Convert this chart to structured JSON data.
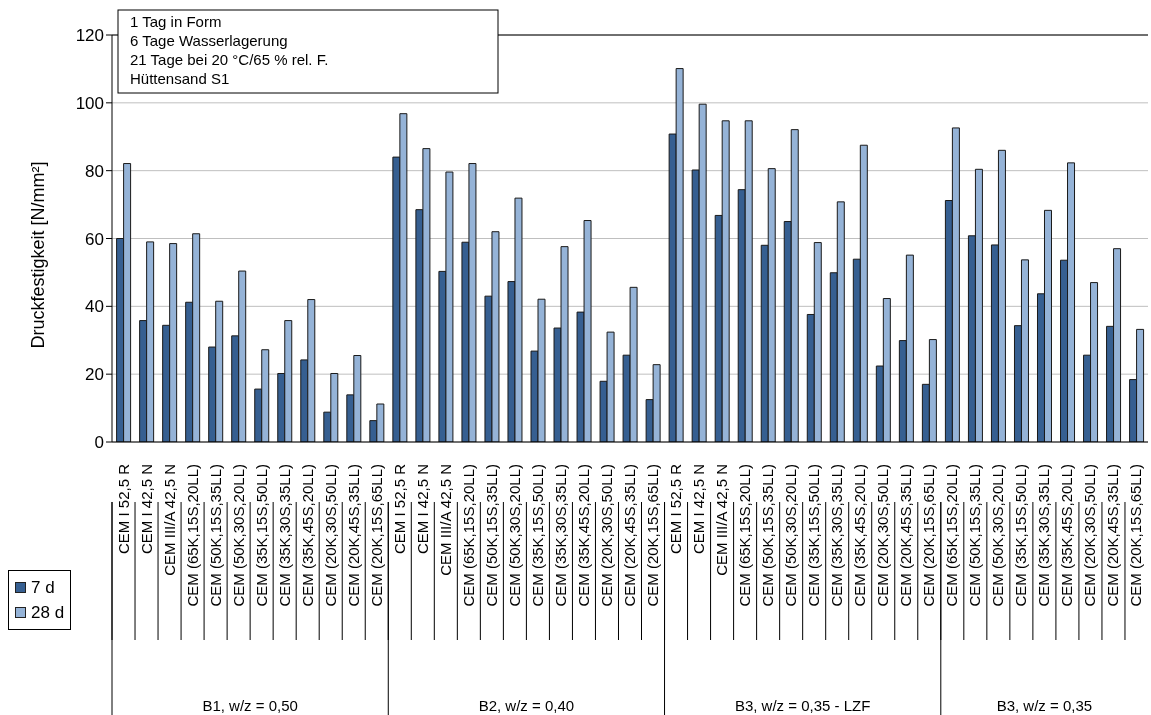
{
  "chart_data": {
    "type": "bar",
    "ylabel": "Druckfestigkeit [N/mm²]",
    "categories": [
      "CEM I 52,5 R",
      "CEM I 42,5 N",
      "CEM III/A 42,5 N",
      "CEM (65K,15S,20LL)",
      "CEM (50K,15S,35LL)",
      "CEM (50K,30S,20LL)",
      "CEM (35K,15S,50LL)",
      "CEM (35K,30S,35LL)",
      "CEM (35K,45S,20LL)",
      "CEM (20K,30S,50LL)",
      "CEM (20K,45S,35LL)",
      "CEM (20K,15S,65LL)",
      "CEM I 52,5 R",
      "CEM I 42,5 N",
      "CEM III/A 42,5 N",
      "CEM (65K,15S,20LL)",
      "CEM (50K,15S,35LL)",
      "CEM (50K,30S,20LL)",
      "CEM (35K,15S,50LL)",
      "CEM (35K,30S,35LL)",
      "CEM (35K,45S,20LL)",
      "CEM (20K,30S,50LL)",
      "CEM (20K,45S,35LL)",
      "CEM (20K,15S,65LL)",
      "CEM I 52,5 R",
      "CEM I 42,5 N",
      "CEM III/A 42,5 N",
      "CEM (65K,15S,20LL)",
      "CEM (50K,15S,35LL)",
      "CEM (50K,30S,20LL)",
      "CEM (35K,15S,50LL)",
      "CEM (35K,30S,35LL)",
      "CEM (35K,45S,20LL)",
      "CEM (20K,30S,50LL)",
      "CEM (20K,45S,35LL)",
      "CEM (20K,15S,65LL)",
      "CEM (65K,15S,20LL)",
      "CEM (50K,15S,35LL)",
      "CEM (50K,30S,20LL)",
      "CEM (35K,15S,50LL)",
      "CEM (35K,30S,35LL)",
      "CEM (35K,45S,20LL)",
      "CEM (20K,30S,50LL)",
      "CEM (20K,45S,35LL)",
      "CEM (20K,15S,65LL)"
    ],
    "series": [
      {
        "name": "7 d",
        "color": "#365f91",
        "values": [
          60,
          35.8,
          34.4,
          41.2,
          28,
          31.3,
          15.6,
          20.2,
          24.2,
          8.8,
          13.9,
          6.3,
          84,
          68.5,
          50.3,
          58.9,
          43,
          47.3,
          26.8,
          33.6,
          38.3,
          17.9,
          25.6,
          12.5,
          90.8,
          80.2,
          66.8,
          74.4,
          58,
          65,
          37.6,
          49.9,
          53.9,
          22.4,
          29.9,
          17,
          71.2,
          60.8,
          58.1,
          34.3,
          43.7,
          53.6,
          25.6,
          34.1,
          18.4
        ]
      },
      {
        "name": "28 d",
        "color": "#95b3d7",
        "values": [
          82.1,
          59,
          58.5,
          61.4,
          41.5,
          50.4,
          27.2,
          35.8,
          42,
          20.2,
          25.5,
          11.2,
          96.8,
          86.5,
          79.6,
          82.1,
          62,
          71.9,
          42.1,
          57.6,
          65.3,
          32.4,
          45.6,
          22.8,
          110.1,
          99.6,
          94.7,
          94.7,
          80.6,
          92.1,
          58.8,
          70.8,
          87.5,
          42.3,
          55.1,
          30.2,
          92.6,
          80.4,
          86,
          53.7,
          68.3,
          82.3,
          47,
          57,
          33.2
        ]
      }
    ],
    "ylim": [
      0,
      120
    ],
    "yticks": [
      0,
      20,
      40,
      60,
      80,
      100,
      120
    ],
    "grid": "y",
    "legend": "bottom left",
    "annotations": [
      "1 Tag in Form\n6 Tage Wasserlagerung\n21 Tage bei 20 °C/65 % rel. F.\nHüttensand S1",
      "B1, w/z = 0,50",
      "B2, w/z = 0,40",
      "B3, w/z = 0,35 - LZF",
      "B3, w/z = 0,35"
    ]
  }
}
